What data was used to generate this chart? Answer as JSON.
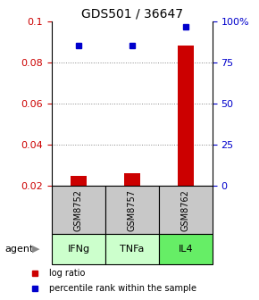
{
  "title": "GDS501 / 36647",
  "samples": [
    "GSM8752",
    "GSM8757",
    "GSM8762"
  ],
  "agents": [
    "IFNg",
    "TNFa",
    "IL4"
  ],
  "log_ratios": [
    0.025,
    0.026,
    0.088
  ],
  "percentile_ranks": [
    85.4,
    85.4,
    96.5
  ],
  "left_ylim": [
    0.02,
    0.1
  ],
  "left_yticks": [
    0.02,
    0.04,
    0.06,
    0.08,
    0.1
  ],
  "right_yticks": [
    0,
    25,
    50,
    75,
    100
  ],
  "right_ylim": [
    0,
    100
  ],
  "bar_color": "#cc0000",
  "dot_color": "#0000cc",
  "sample_box_color": "#c8c8c8",
  "agent_colors": [
    "#ccffcc",
    "#ccffcc",
    "#66ee66"
  ],
  "legend_bar_label": "log ratio",
  "legend_dot_label": "percentile rank within the sample",
  "grid_color": "#888888",
  "title_fontsize": 10,
  "tick_fontsize": 8,
  "bar_width": 0.3
}
